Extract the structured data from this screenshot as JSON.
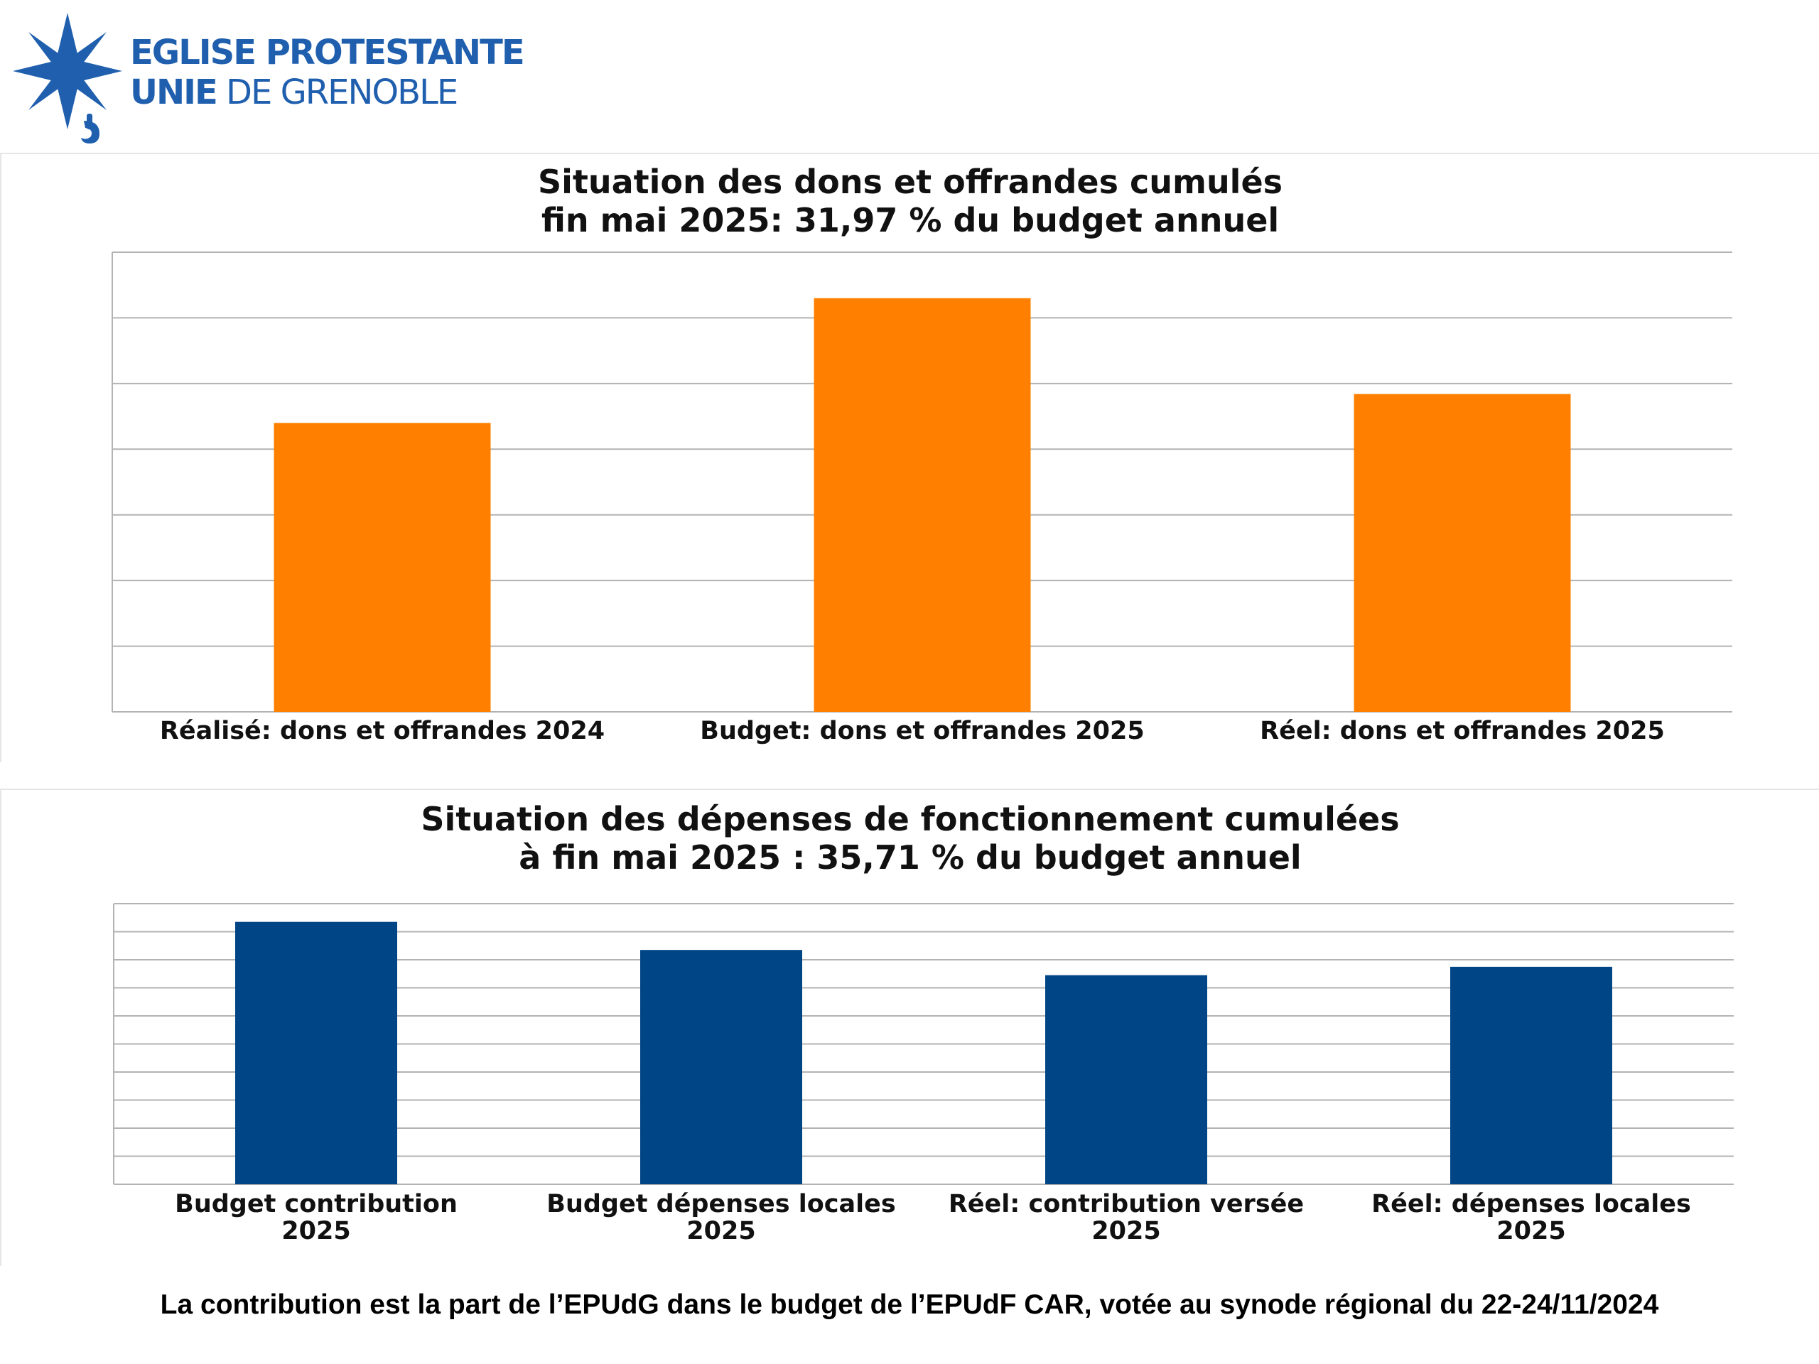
{
  "logo": {
    "line1": "EGLISE PROTESTANTE",
    "line2_bold": "UNIE",
    "line2_rest": " DE GRENOBLE",
    "icon": "huguenot-cross-icon",
    "color": "#1f5fae"
  },
  "chart_data": [
    {
      "type": "bar",
      "title": [
        "Situation des dons et offrandes cumulés",
        "fin mai 2025: 31,97 % du budget annuel"
      ],
      "categories": [
        "Réalisé: dons et offrandes 2024",
        "Budget: dons et offrandes 2025",
        "Réel: dons et offrandes 2025"
      ],
      "values": [
        4.4,
        6.3,
        4.84
      ],
      "ylim": [
        0,
        7
      ],
      "grid_lines": 7,
      "grid": true,
      "legend": "none",
      "color": "#ff8000"
    },
    {
      "type": "bar",
      "title": [
        "Situation des dépenses de fonctionnement cumulées",
        "à fin mai 2025 : 35,71 % du budget annuel"
      ],
      "categories": [
        [
          "Budget contribution",
          "2025"
        ],
        [
          "Budget dépenses locales",
          "2025"
        ],
        [
          "Réel: contribution versée",
          "2025"
        ],
        [
          "Réel: dépenses locales",
          "2025"
        ]
      ],
      "values": [
        9.35,
        8.35,
        7.45,
        7.75
      ],
      "ylim": [
        0,
        10
      ],
      "grid_lines": 10,
      "grid": true,
      "legend": "none",
      "color": "#004586"
    }
  ],
  "footer": {
    "note": "La contribution est la part de l’EPUdG dans le budget de l’EPUdF CAR, votée au synode régional du 22-24/11/2024"
  }
}
